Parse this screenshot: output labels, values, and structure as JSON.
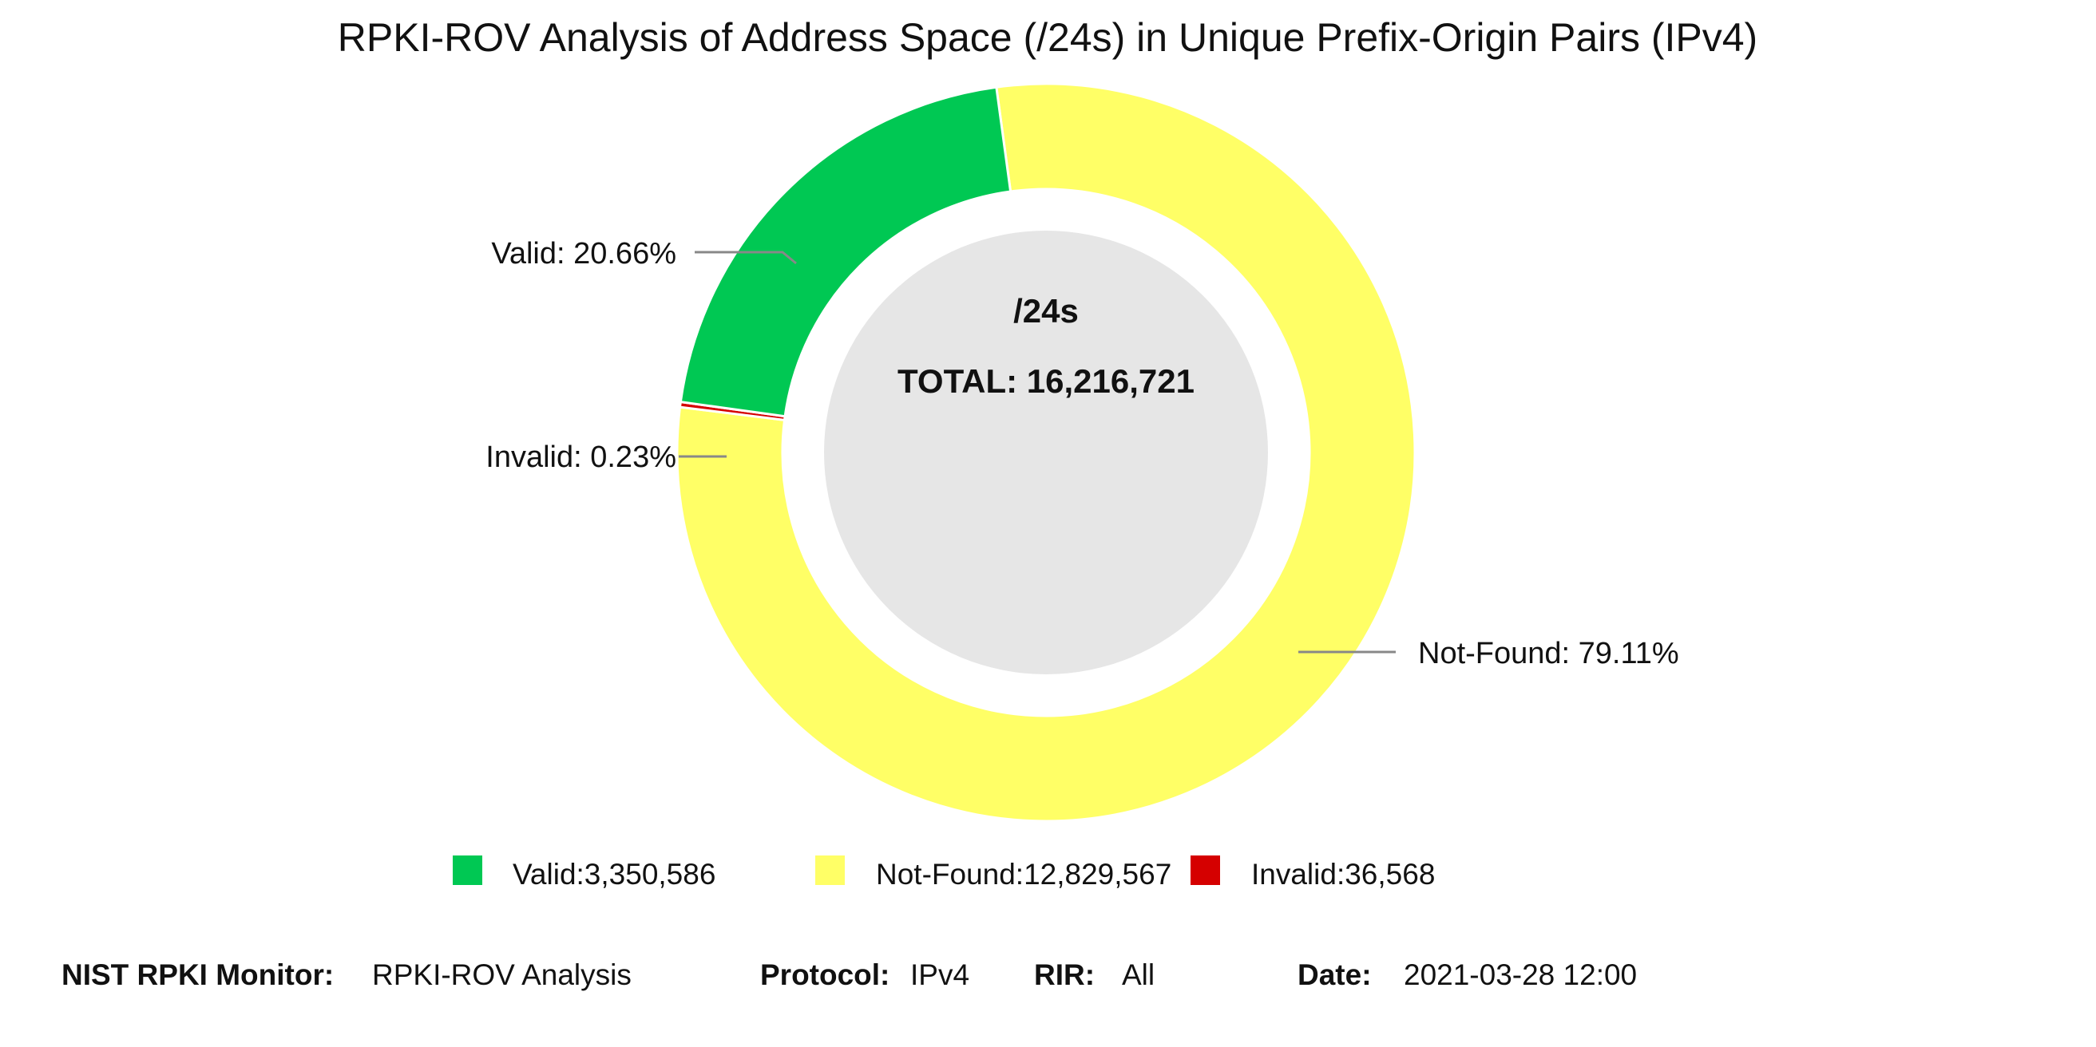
{
  "chart_data": {
    "type": "pie",
    "style": "donut",
    "title": "RPKI-ROV Analysis of Address Space (/24s) in Unique Prefix-Origin Pairs (IPv4)",
    "center": {
      "unit_label": "/24s",
      "total_label": "TOTAL: 16,216,721"
    },
    "slices": [
      {
        "name": "Valid",
        "value": 3350586,
        "percent": 20.66,
        "label": "Valid: 20.66%",
        "legend_label": "Valid:3,350,586",
        "color": "#00c853"
      },
      {
        "name": "Not-Found",
        "value": 12829567,
        "percent": 79.11,
        "label": "Not-Found: 79.11%",
        "legend_label": "Not-Found:12,829,567",
        "color": "#ffff66"
      },
      {
        "name": "Invalid",
        "value": 36568,
        "percent": 0.23,
        "label": "Invalid: 0.23%",
        "legend_label": "Invalid:36,568",
        "color": "#d50000"
      }
    ],
    "legend_position": "bottom"
  },
  "footer": {
    "monitor_label": "NIST RPKI Monitor:",
    "monitor_value": "RPKI-ROV Analysis",
    "protocol_label": "Protocol:",
    "protocol_value": "IPv4",
    "rir_label": "RIR:",
    "rir_value": "All",
    "date_label": "Date:",
    "date_value": "2021-03-28 12:00"
  },
  "colors": {
    "center_fill": "#e6e6e6",
    "leader_line": "#888888",
    "text": "#111111"
  }
}
